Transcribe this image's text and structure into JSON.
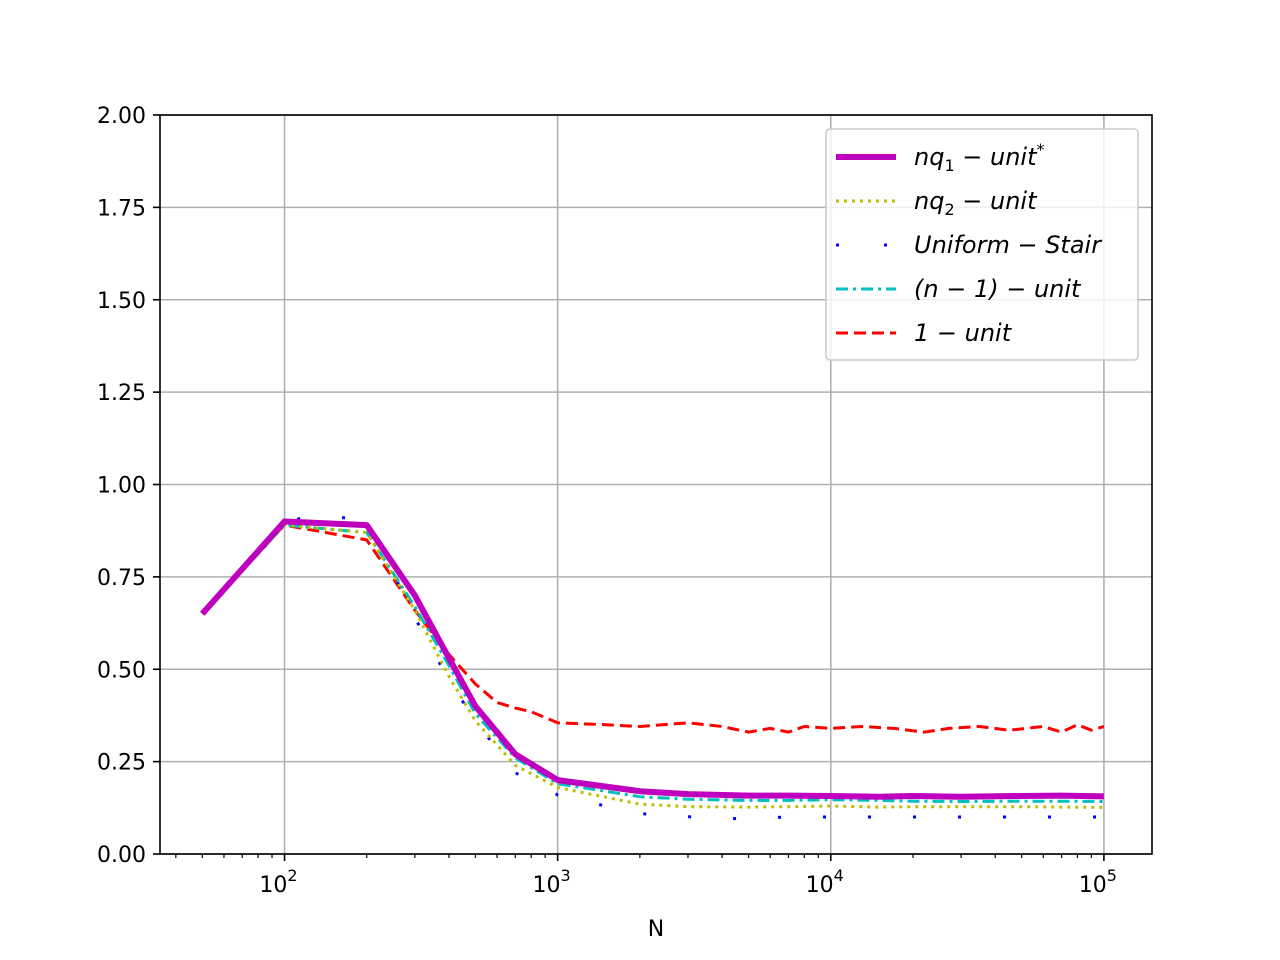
{
  "chart_data": {
    "type": "line",
    "xlabel": "N",
    "ylabel": "",
    "xscale": "log",
    "xlim": [
      35,
      150000
    ],
    "ylim": [
      0,
      2
    ],
    "grid": true,
    "legend_position": "top-right",
    "y_ticks": [
      "0.00",
      "0.25",
      "0.50",
      "0.75",
      "1.00",
      "1.25",
      "1.50",
      "1.75",
      "2.00"
    ],
    "x_ticks": [
      {
        "value": 100,
        "base": "10",
        "exp": "2"
      },
      {
        "value": 1000,
        "base": "10",
        "exp": "3"
      },
      {
        "value": 10000,
        "base": "10",
        "exp": "4"
      },
      {
        "value": 100000,
        "base": "10",
        "exp": "5"
      }
    ],
    "series": [
      {
        "name": "nq1-unit*",
        "legend": {
          "base": "nq",
          "sub": "1",
          "rest": " − unit",
          "sup": "*"
        },
        "color": "#bf00bf",
        "style": "solid-thick",
        "x": [
          50,
          100,
          200,
          300,
          400,
          500,
          700,
          1000,
          2000,
          3000,
          5000,
          7000,
          10000,
          15000,
          20000,
          30000,
          50000,
          70000,
          100000
        ],
        "y": [
          0.65,
          0.9,
          0.89,
          0.7,
          0.53,
          0.4,
          0.27,
          0.2,
          0.17,
          0.162,
          0.158,
          0.158,
          0.157,
          0.155,
          0.157,
          0.155,
          0.157,
          0.158,
          0.156
        ]
      },
      {
        "name": "nq2-unit",
        "legend": {
          "base": "nq",
          "sub": "2",
          "rest": " − unit",
          "sup": ""
        },
        "color": "#bfbf00",
        "style": "dotted",
        "x": [
          50,
          100,
          200,
          300,
          400,
          500,
          700,
          1000,
          2000,
          3000,
          5000,
          7000,
          10000,
          15000,
          20000,
          30000,
          50000,
          70000,
          100000
        ],
        "y": [
          0.65,
          0.89,
          0.87,
          0.66,
          0.48,
          0.36,
          0.24,
          0.18,
          0.135,
          0.128,
          0.127,
          0.128,
          0.13,
          0.127,
          0.128,
          0.128,
          0.128,
          0.127,
          0.126
        ]
      },
      {
        "name": "Uniform-Stair",
        "legend": {
          "base": "Uniform − Stair",
          "sub": "",
          "rest": "",
          "sup": ""
        },
        "color": "#0000ff",
        "style": "sparse-dotted",
        "x": [
          50,
          100,
          115,
          170,
          215,
          300,
          400,
          500,
          700,
          1000,
          1500,
          2200,
          3200,
          4700,
          7000,
          10000,
          15000,
          22000,
          32000,
          47000,
          70000,
          100000
        ],
        "y": [
          0.65,
          0.89,
          0.91,
          0.91,
          0.86,
          0.64,
          0.47,
          0.36,
          0.22,
          0.16,
          0.13,
          0.105,
          0.1,
          0.095,
          0.1,
          0.1,
          0.1,
          0.1,
          0.1,
          0.1,
          0.1,
          0.1
        ]
      },
      {
        "name": "(n-1)-unit",
        "legend": {
          "base": "(n − 1) − unit",
          "sub": "",
          "rest": "",
          "sup": ""
        },
        "color": "#00bfbf",
        "style": "dashdot",
        "x": [
          50,
          100,
          200,
          300,
          400,
          500,
          700,
          1000,
          2000,
          3000,
          5000,
          7000,
          10000,
          15000,
          20000,
          30000,
          50000,
          70000,
          100000
        ],
        "y": [
          0.65,
          0.89,
          0.87,
          0.67,
          0.51,
          0.38,
          0.26,
          0.19,
          0.155,
          0.148,
          0.145,
          0.145,
          0.147,
          0.145,
          0.143,
          0.142,
          0.143,
          0.143,
          0.142
        ]
      },
      {
        "name": "1-unit",
        "legend": {
          "base": "1 − unit",
          "sub": "",
          "rest": "",
          "sup": ""
        },
        "color": "#ff0000",
        "style": "dashed",
        "x": [
          50,
          100,
          200,
          300,
          400,
          500,
          600,
          700,
          800,
          1000,
          1500,
          2000,
          3000,
          4000,
          5000,
          6000,
          7000,
          8000,
          10000,
          13000,
          17000,
          22000,
          27000,
          35000,
          45000,
          60000,
          70000,
          80000,
          90000,
          100000
        ],
        "y": [
          0.65,
          0.89,
          0.85,
          0.66,
          0.54,
          0.46,
          0.41,
          0.395,
          0.385,
          0.355,
          0.35,
          0.345,
          0.355,
          0.345,
          0.33,
          0.34,
          0.33,
          0.345,
          0.34,
          0.345,
          0.34,
          0.33,
          0.34,
          0.345,
          0.335,
          0.345,
          0.33,
          0.35,
          0.335,
          0.345
        ]
      }
    ]
  }
}
